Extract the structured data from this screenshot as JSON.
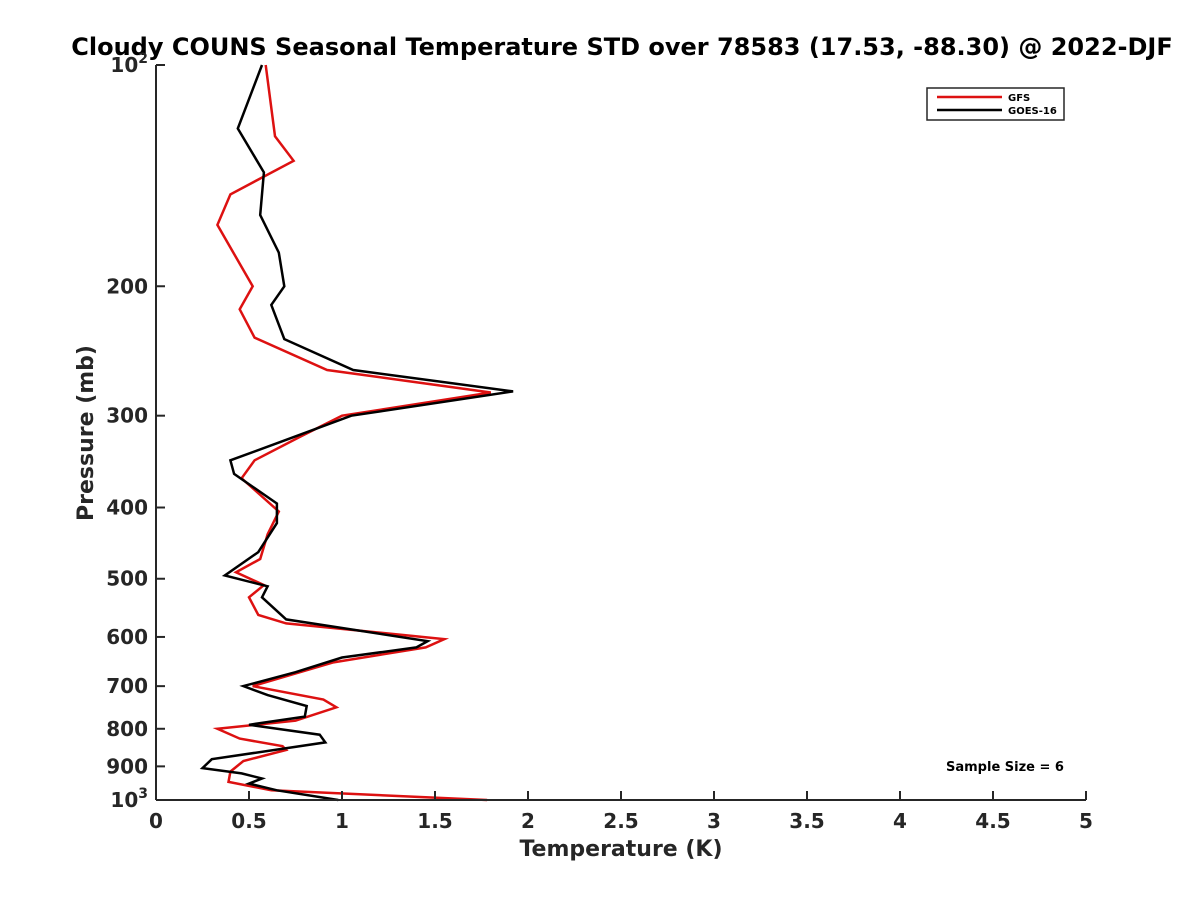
{
  "chart_data": {
    "type": "line",
    "title": "Cloudy COUNS Seasonal Temperature STD over 78583 (17.53, -88.30) @ 2022-DJF",
    "xlabel": "Temperature (K)",
    "ylabel": "Pressure (mb)",
    "xlim": [
      0,
      5
    ],
    "ylim": [
      100,
      1000
    ],
    "y_scale": "log",
    "y_reversed": true,
    "x_ticks": [
      "0",
      "0.5",
      "1",
      "1.5",
      "2",
      "2.5",
      "3",
      "3.5",
      "4",
      "4.5",
      "5"
    ],
    "x_tick_values": [
      0,
      0.5,
      1,
      1.5,
      2,
      2.5,
      3,
      3.5,
      4,
      4.5,
      5
    ],
    "y_ticks": [
      {
        "value": 100,
        "base": "10",
        "exp": "2"
      },
      {
        "value": 200,
        "label": "200"
      },
      {
        "value": 300,
        "label": "300"
      },
      {
        "value": 400,
        "label": "400"
      },
      {
        "value": 500,
        "label": "500"
      },
      {
        "value": 600,
        "label": "600"
      },
      {
        "value": 700,
        "label": "700"
      },
      {
        "value": 800,
        "label": "800"
      },
      {
        "value": 900,
        "label": "900"
      },
      {
        "value": 1000,
        "base": "10",
        "exp": "3"
      }
    ],
    "legend_position": "top-right",
    "annotation": "Sample Size = 6",
    "series": [
      {
        "name": "GFS",
        "color": "#dd1111",
        "points": [
          [
            0.59,
            100
          ],
          [
            0.64,
            125
          ],
          [
            0.74,
            135
          ],
          [
            0.4,
            150
          ],
          [
            0.33,
            165
          ],
          [
            0.52,
            200
          ],
          [
            0.45,
            215
          ],
          [
            0.53,
            235
          ],
          [
            0.92,
            260
          ],
          [
            1.8,
            279
          ],
          [
            1.0,
            300
          ],
          [
            0.78,
            320
          ],
          [
            0.53,
            345
          ],
          [
            0.46,
            365
          ],
          [
            0.66,
            405
          ],
          [
            0.6,
            435
          ],
          [
            0.56,
            470
          ],
          [
            0.43,
            490
          ],
          [
            0.58,
            510
          ],
          [
            0.5,
            530
          ],
          [
            0.55,
            560
          ],
          [
            0.7,
            575
          ],
          [
            1.55,
            604
          ],
          [
            1.45,
            620
          ],
          [
            0.95,
            650
          ],
          [
            0.52,
            700
          ],
          [
            0.9,
            730
          ],
          [
            0.97,
            748
          ],
          [
            0.75,
            780
          ],
          [
            0.33,
            800
          ],
          [
            0.45,
            825
          ],
          [
            0.68,
            845
          ],
          [
            0.7,
            855
          ],
          [
            0.47,
            885
          ],
          [
            0.4,
            915
          ],
          [
            0.39,
            945
          ],
          [
            0.62,
            970
          ],
          [
            1.78,
            1000
          ]
        ]
      },
      {
        "name": "GOES-16",
        "color": "#000000",
        "points": [
          [
            0.57,
            100
          ],
          [
            0.44,
            122
          ],
          [
            0.58,
            140
          ],
          [
            0.56,
            160
          ],
          [
            0.66,
            180
          ],
          [
            0.69,
            200
          ],
          [
            0.62,
            212
          ],
          [
            0.69,
            236
          ],
          [
            1.06,
            260
          ],
          [
            1.92,
            278
          ],
          [
            1.05,
            300
          ],
          [
            0.68,
            325
          ],
          [
            0.4,
            345
          ],
          [
            0.42,
            360
          ],
          [
            0.65,
            395
          ],
          [
            0.65,
            420
          ],
          [
            0.55,
            460
          ],
          [
            0.37,
            495
          ],
          [
            0.6,
            512
          ],
          [
            0.57,
            530
          ],
          [
            0.7,
            568
          ],
          [
            1.46,
            608
          ],
          [
            1.4,
            620
          ],
          [
            1.0,
            640
          ],
          [
            0.75,
            670
          ],
          [
            0.47,
            700
          ],
          [
            0.6,
            720
          ],
          [
            0.81,
            745
          ],
          [
            0.8,
            770
          ],
          [
            0.5,
            790
          ],
          [
            0.88,
            815
          ],
          [
            0.91,
            835
          ],
          [
            0.3,
            880
          ],
          [
            0.25,
            905
          ],
          [
            0.46,
            920
          ],
          [
            0.57,
            935
          ],
          [
            0.5,
            950
          ],
          [
            0.65,
            970
          ],
          [
            0.98,
            1000
          ]
        ]
      }
    ]
  }
}
